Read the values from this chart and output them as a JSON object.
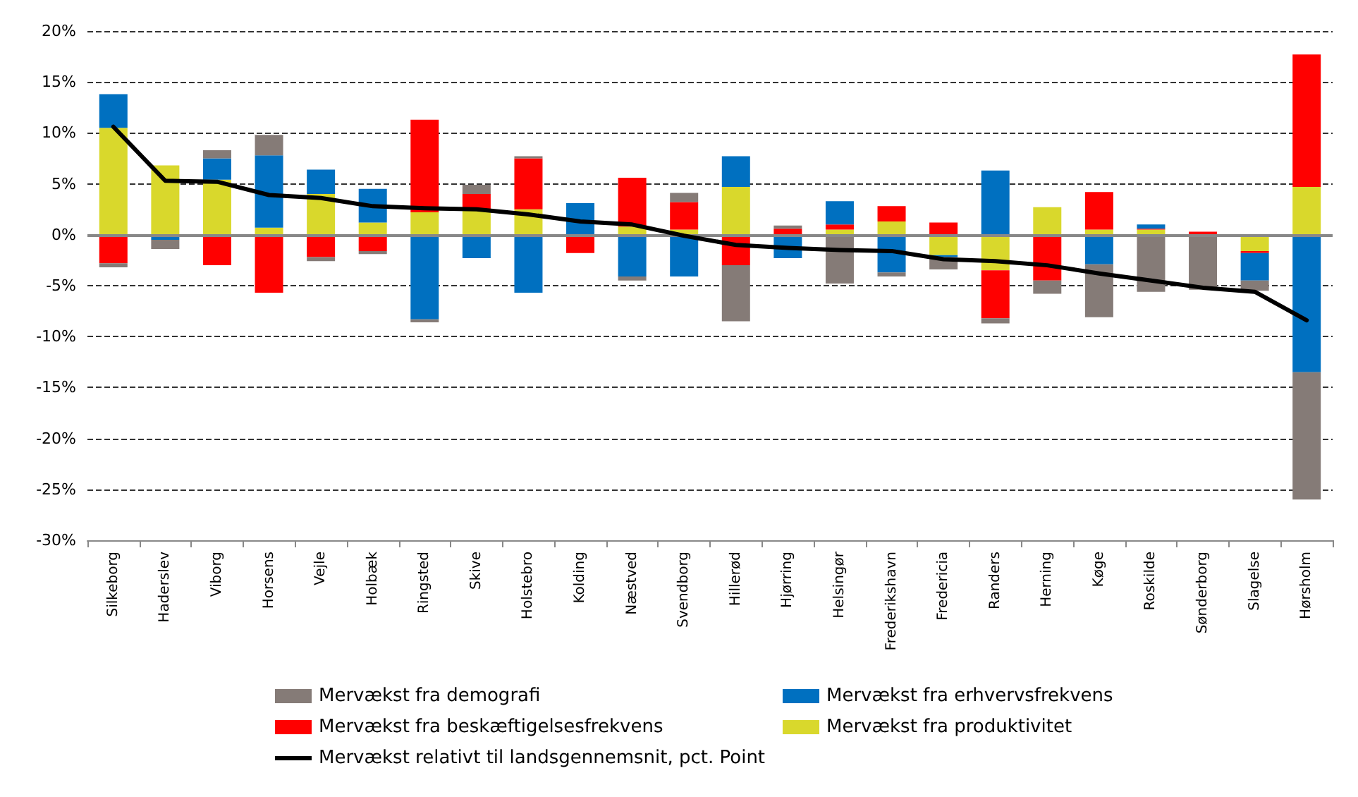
{
  "chart_data": {
    "type": "bar",
    "stacked": true,
    "categories": [
      "Silkeborg",
      "Haderslev",
      "Viborg",
      "Horsens",
      "Vejle",
      "Holbæk",
      "Ringsted",
      "Skive",
      "Holstebro",
      "Kolding",
      "Næstved",
      "Svendborg",
      "Hillerød",
      "Hjørring",
      "Helsingør",
      "Frederikshavn",
      "Fredericia",
      "Randers",
      "Herning",
      "Køge",
      "Roskilde",
      "Sønderborg",
      "Slagelse",
      "Hørsholm"
    ],
    "series": [
      {
        "name": "Mervækst fra produktivitet",
        "color": "#d9d82c",
        "values": [
          10.5,
          6.8,
          5.4,
          0.7,
          4.0,
          1.2,
          2.2,
          2.5,
          2.5,
          null,
          0.8,
          0.5,
          4.7,
          null,
          0.5,
          1.3,
          -2.0,
          -3.5,
          2.7,
          0.5,
          0.5,
          null,
          -1.6,
          4.7
        ]
      },
      {
        "name": "Mervækst fra beskæftigelsesfrekvens",
        "color": "#ff0000",
        "values": [
          -2.8,
          -0.2,
          -3.0,
          -5.7,
          -2.2,
          -1.6,
          9.1,
          1.5,
          5.0,
          -1.8,
          4.8,
          2.7,
          -3.0,
          0.6,
          0.5,
          1.5,
          1.2,
          -4.7,
          -4.5,
          3.7,
          0.1,
          0.3,
          -0.2,
          13.0
        ]
      },
      {
        "name": "Mervækst fra erhvervsfrekvens",
        "color": "#0070c0",
        "values": [
          3.3,
          -0.3,
          2.1,
          7.1,
          2.4,
          3.3,
          -8.3,
          -2.3,
          -5.7,
          3.1,
          -4.1,
          -4.1,
          3.0,
          -2.3,
          2.3,
          -3.7,
          -0.2,
          6.3,
          null,
          -2.9,
          0.4,
          null,
          -2.7,
          -13.5
        ]
      },
      {
        "name": "Mervækst fra demografi",
        "color": "#857b77",
        "values": [
          -0.4,
          -0.9,
          0.8,
          2.0,
          -0.4,
          -0.3,
          -0.3,
          0.9,
          0.2,
          null,
          -0.4,
          0.9,
          -5.5,
          0.3,
          -4.8,
          -0.4,
          -1.2,
          -0.5,
          -1.3,
          -5.2,
          -5.6,
          -5.4,
          -1.0,
          -12.5
        ]
      },
      {
        "name": "Mervækst relativt til landsgennemsnit, pct. Point",
        "type": "line",
        "color": "#000000",
        "values": [
          10.6,
          5.3,
          5.2,
          3.9,
          3.6,
          2.8,
          2.6,
          2.5,
          2.0,
          1.3,
          1.0,
          -0.1,
          -1.0,
          -1.3,
          -1.5,
          -1.6,
          -2.4,
          -2.6,
          -3.0,
          -3.8,
          -4.5,
          -5.2,
          -5.6,
          -8.4
        ]
      }
    ],
    "ylim": [
      -30,
      20
    ],
    "yticks": [
      {
        "value": -30,
        "label": "-30%"
      },
      {
        "value": -25,
        "label": "-25%"
      },
      {
        "value": -20,
        "label": "-20%"
      },
      {
        "value": -15,
        "label": "-15%"
      },
      {
        "value": -10,
        "label": "-10%"
      },
      {
        "value": -5,
        "label": "-5%"
      },
      {
        "value": 0,
        "label": "0%"
      },
      {
        "value": 5,
        "label": "5%"
      },
      {
        "value": 10,
        "label": "10%"
      },
      {
        "value": 15,
        "label": "15%"
      },
      {
        "value": 20,
        "label": "20%"
      }
    ],
    "grid": "y",
    "legend": "bottom",
    "marker": "none",
    "line_style": "solid"
  }
}
